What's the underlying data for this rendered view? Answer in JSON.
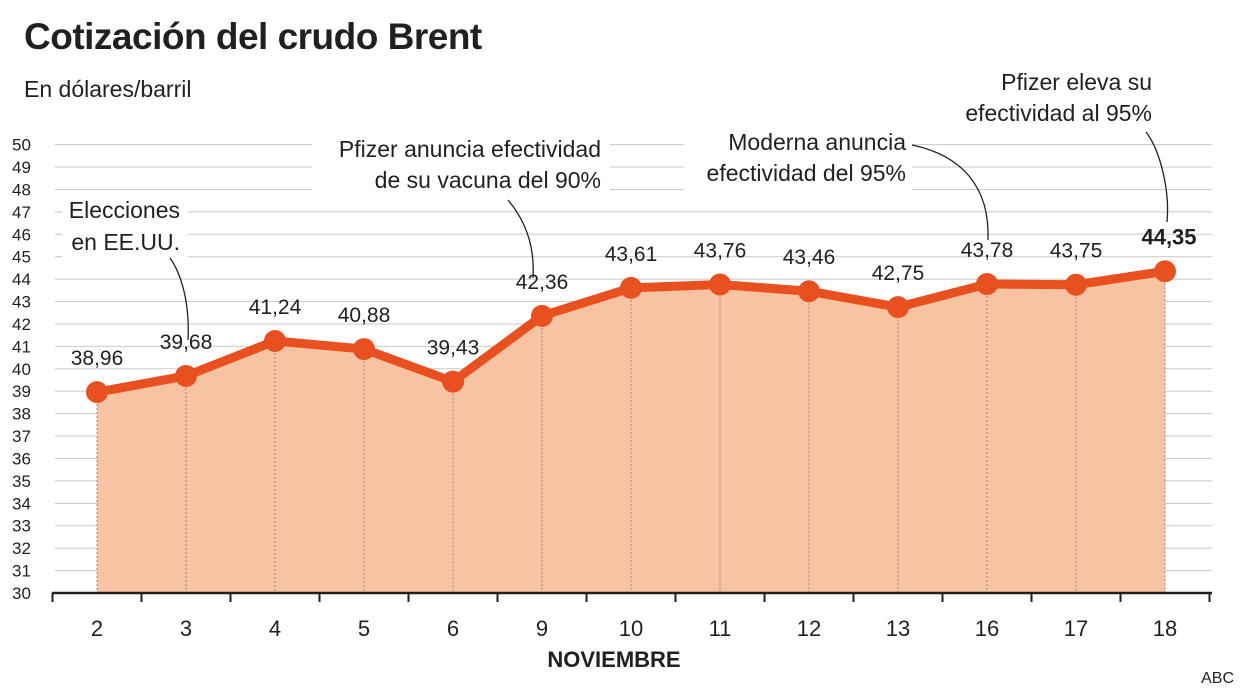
{
  "chart_data": {
    "type": "line",
    "title": "Cotización del crudo Brent",
    "subtitle": "En dólares/barril",
    "xlabel": "NOVIEMBRE",
    "ylabel": "",
    "ylim": [
      30,
      50
    ],
    "yticks": [
      30,
      31,
      32,
      33,
      34,
      35,
      36,
      37,
      38,
      39,
      40,
      41,
      42,
      43,
      44,
      45,
      46,
      47,
      48,
      49,
      50
    ],
    "categories": [
      "2",
      "3",
      "4",
      "5",
      "6",
      "9",
      "10",
      "11",
      "12",
      "13",
      "16",
      "17",
      "18"
    ],
    "values": [
      38.96,
      39.68,
      41.24,
      40.88,
      39.43,
      42.36,
      43.61,
      43.76,
      43.46,
      42.75,
      43.78,
      43.75,
      44.35
    ],
    "value_labels": [
      "38,96",
      "39,68",
      "41,24",
      "40,88",
      "39,43",
      "42,36",
      "43,61",
      "43,76",
      "43,46",
      "42,75",
      "43,78",
      "43,75",
      "44,35"
    ],
    "highlight_index": 12,
    "annotations": [
      {
        "lines": [
          "Elecciones",
          "en EE.UU."
        ],
        "category": "3"
      },
      {
        "lines": [
          "Pfizer anuncia efectividad",
          "de su vacuna del 90%"
        ],
        "category": "9"
      },
      {
        "lines": [
          "Moderna anuncia",
          "efectividad del 95%"
        ],
        "category": "16"
      },
      {
        "lines": [
          "Pfizer eleva su",
          "efectividad al 95%"
        ],
        "category": "18"
      }
    ],
    "grid": true
  },
  "colors": {
    "line": "#e8501f",
    "fill": "#f8c3a3",
    "grid": "#c8c8c8",
    "text": "#231f20"
  },
  "credit": "ABC"
}
